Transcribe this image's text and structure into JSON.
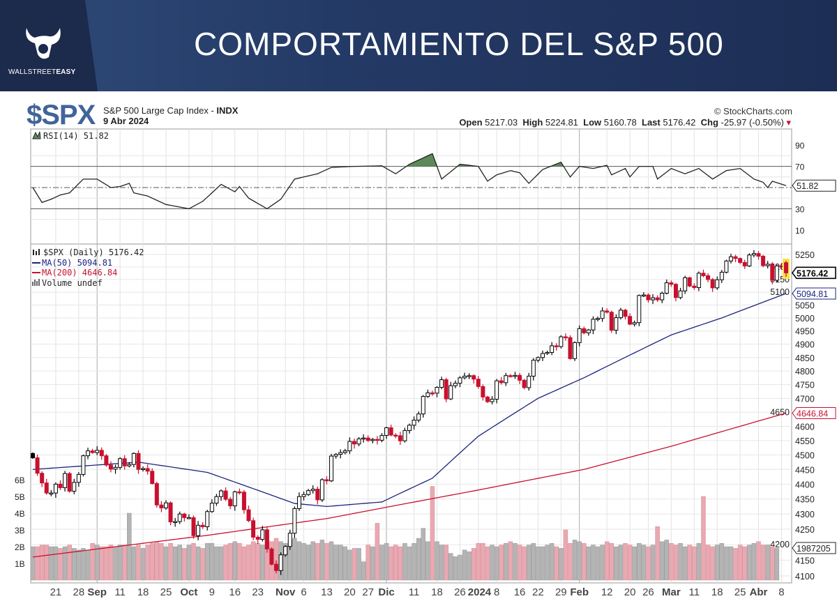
{
  "banner": {
    "title": "COMPORTAMIENTO DEL S&P 500",
    "logo_a": "WALLSTREET",
    "logo_b": "EASY"
  },
  "header": {
    "symbol": "$SPX",
    "name": "S&P 500 Large Cap Index - ",
    "exchange": "INDX",
    "date": "9 Abr 2024",
    "copyright": "© StockCharts.com",
    "open_label": "Open",
    "open": "5217.03",
    "high_label": "High",
    "high": "5224.81",
    "low_label": "Low",
    "low": "5160.78",
    "last_label": "Last",
    "last": "5176.42",
    "chg_label": "Chg",
    "chg": "-25.97 (-0.50%)",
    "chg_arrow": "▾"
  },
  "colors": {
    "up": "#000000",
    "down": "#c8102e",
    "ma50": "#1a237e",
    "ma200": "#c8102e",
    "vol_up": "#b4b4b4",
    "vol_down": "#e8a9b2",
    "rsi_fill": "#5d8a5a"
  },
  "chart_data": {
    "type": "candlestick",
    "legend": {
      "rsi": "RSI(14) 51.82",
      "price": "$SPX (Daily) 5176.42",
      "ma50": "MA(50) 5094.81",
      "ma200": "MA(200) 4646.84",
      "volume": "Volume undef"
    },
    "value_tags": {
      "rsi": "51.82",
      "last": "5176.42",
      "ma50": "5094.81",
      "ma200": "4646.84",
      "volume": "1987205"
    },
    "price_axis": {
      "scale": "log",
      "range": [
        4090,
        5290
      ],
      "ticks": [
        4100,
        4150,
        4200,
        4250,
        4300,
        4350,
        4400,
        4450,
        4500,
        4550,
        4600,
        4650,
        4700,
        4750,
        4800,
        4850,
        4900,
        4950,
        5000,
        5050,
        5100,
        5150,
        5200,
        5250
      ]
    },
    "rsi_axis": {
      "range": [
        0,
        100
      ],
      "ticks": [
        10,
        30,
        70,
        90
      ],
      "levels": [
        30,
        50,
        70
      ]
    },
    "volume_axis": {
      "unit": "B",
      "ticks": [
        "1B",
        "2B",
        "3B",
        "4B",
        "5B",
        "6B"
      ],
      "range": [
        0,
        10.5
      ]
    },
    "x_labels": [
      {
        "t": "21",
        "i": 5
      },
      {
        "t": "28",
        "i": 10
      },
      {
        "t": "Sep",
        "i": 14,
        "b": 1
      },
      {
        "t": "11",
        "i": 19
      },
      {
        "t": "18",
        "i": 24
      },
      {
        "t": "25",
        "i": 29
      },
      {
        "t": "Oct",
        "i": 34,
        "b": 1
      },
      {
        "t": "9",
        "i": 39
      },
      {
        "t": "16",
        "i": 44
      },
      {
        "t": "23",
        "i": 49
      },
      {
        "t": "Nov",
        "i": 55,
        "b": 1
      },
      {
        "t": "6",
        "i": 59
      },
      {
        "t": "13",
        "i": 64
      },
      {
        "t": "20",
        "i": 69
      },
      {
        "t": "27",
        "i": 73
      },
      {
        "t": "Dic",
        "i": 77,
        "b": 1
      },
      {
        "t": "11",
        "i": 83
      },
      {
        "t": "18",
        "i": 88
      },
      {
        "t": "26",
        "i": 93
      },
      {
        "t": "2024",
        "i": 97,
        "b": 1
      },
      {
        "t": "8",
        "i": 101
      },
      {
        "t": "16",
        "i": 106
      },
      {
        "t": "22",
        "i": 110
      },
      {
        "t": "29",
        "i": 115
      },
      {
        "t": "Feb",
        "i": 119,
        "b": 1
      },
      {
        "t": "12",
        "i": 125
      },
      {
        "t": "20",
        "i": 130
      },
      {
        "t": "26",
        "i": 134
      },
      {
        "t": "Mar",
        "i": 139,
        "b": 1
      },
      {
        "t": "11",
        "i": 144
      },
      {
        "t": "18",
        "i": 149
      },
      {
        "t": "25",
        "i": 154
      },
      {
        "t": "Abr",
        "i": 158,
        "b": 1
      },
      {
        "t": "8",
        "i": 163
      }
    ],
    "close": [
      4490,
      4437,
      4404,
      4370,
      4370,
      4400,
      4388,
      4436,
      4376,
      4406,
      4433,
      4497,
      4514,
      4508,
      4516,
      4497,
      4465,
      4451,
      4457,
      4487,
      4462,
      4467,
      4505,
      4450,
      4453,
      4444,
      4402,
      4330,
      4320,
      4337,
      4274,
      4275,
      4300,
      4288,
      4288,
      4229,
      4263,
      4258,
      4308,
      4336,
      4358,
      4377,
      4349,
      4327,
      4374,
      4373,
      4314,
      4278,
      4224,
      4217,
      4248,
      4186,
      4137,
      4117,
      4167,
      4194,
      4237,
      4318,
      4358,
      4365,
      4378,
      4383,
      4347,
      4415,
      4411,
      4496,
      4502,
      4508,
      4514,
      4547,
      4538,
      4556,
      4559,
      4550,
      4554,
      4551,
      4568,
      4595,
      4569,
      4567,
      4549,
      4585,
      4604,
      4622,
      4644,
      4707,
      4720,
      4719,
      4740,
      4768,
      4698,
      4746,
      4755,
      4775,
      4781,
      4783,
      4770,
      4743,
      4705,
      4688,
      4697,
      4764,
      4757,
      4783,
      4780,
      4784,
      4766,
      4739,
      4781,
      4840,
      4850,
      4865,
      4869,
      4894,
      4891,
      4928,
      4925,
      4846,
      4906,
      4959,
      4943,
      4954,
      4995,
      4998,
      5027,
      5022,
      4953,
      5001,
      5030,
      5006,
      4976,
      4982,
      5087,
      5089,
      5070,
      5078,
      5070,
      5096,
      5137,
      5131,
      5079,
      5105,
      5157,
      5124,
      5118,
      5175,
      5165,
      5150,
      5117,
      5149,
      5179,
      5224,
      5241,
      5234,
      5218,
      5204,
      5248,
      5254,
      5243,
      5205,
      5211,
      5147,
      5204,
      5202,
      5176.42
    ],
    "volume_b": [
      2.0,
      2.0,
      2.1,
      2.1,
      2.0,
      2.0,
      1.9,
      2.0,
      2.1,
      1.9,
      1.8,
      1.9,
      1.8,
      2.2,
      2.1,
      2.0,
      2.0,
      2.1,
      2.0,
      2.1,
      2.1,
      4.0,
      2.0,
      2.1,
      1.9,
      2.1,
      2.2,
      2.3,
      2.2,
      2.0,
      2.2,
      2.0,
      2.1,
      1.9,
      2.1,
      2.2,
      2.0,
      1.9,
      2.2,
      2.2,
      2.0,
      2.0,
      2.1,
      2.2,
      2.3,
      2.2,
      2.0,
      2.1,
      2.3,
      2.2,
      2.1,
      2.4,
      2.3,
      2.5,
      2.3,
      2.2,
      2.4,
      2.5,
      2.3,
      2.2,
      2.1,
      2.3,
      2.2,
      2.4,
      2.2,
      2.3,
      2.1,
      2.1,
      2.0,
      1.8,
      1.9,
      1.9,
      1.1,
      2.1,
      2.0,
      3.4,
      2.1,
      2.2,
      2.0,
      2.1,
      2.0,
      2.2,
      2.0,
      2.2,
      2.5,
      3.1,
      2.3,
      5.6,
      2.3,
      2.1,
      2.1,
      1.6,
      1.4,
      1.5,
      1.8,
      1.7,
      1.9,
      2.2,
      2.2,
      2.0,
      2.1,
      2.0,
      2.1,
      2.2,
      2.3,
      2.2,
      2.1,
      2.0,
      2.1,
      2.2,
      2.0,
      2.0,
      2.1,
      2.2,
      2.0,
      1.9,
      3.0,
      2.2,
      2.4,
      2.3,
      2.2,
      2.0,
      2.1,
      2.0,
      2.1,
      2.3,
      2.2,
      2.0,
      2.1,
      2.2,
      2.1,
      2.0,
      2.2,
      2.1,
      2.0,
      2.1,
      3.2,
      2.3,
      2.4,
      2.2,
      2.1,
      2.2,
      2.0,
      2.1,
      2.0,
      2.2,
      5.0,
      2.1,
      2.0,
      2.1,
      2.2,
      2.0,
      2.0,
      1.9,
      2.1,
      2.0,
      2.1,
      2.2,
      2.3,
      2.1,
      2.1,
      2.0,
      1.9
    ],
    "ma50": [
      [
        0,
        4450
      ],
      [
        23,
        4475
      ],
      [
        38,
        4440
      ],
      [
        57,
        4335
      ],
      [
        64,
        4325
      ],
      [
        76,
        4340
      ],
      [
        87,
        4420
      ],
      [
        97,
        4565
      ],
      [
        110,
        4700
      ],
      [
        120,
        4775
      ],
      [
        139,
        4935
      ],
      [
        150,
        5000
      ],
      [
        164,
        5095
      ]
    ],
    "ma200": [
      [
        0,
        4160
      ],
      [
        38,
        4230
      ],
      [
        64,
        4285
      ],
      [
        97,
        4380
      ],
      [
        120,
        4450
      ],
      [
        139,
        4530
      ],
      [
        164,
        4647
      ]
    ],
    "rsi": [
      [
        0,
        50
      ],
      [
        2,
        36
      ],
      [
        4,
        39
      ],
      [
        6,
        43
      ],
      [
        8,
        45
      ],
      [
        11,
        58
      ],
      [
        14,
        58
      ],
      [
        17,
        50
      ],
      [
        19,
        51
      ],
      [
        21,
        54
      ],
      [
        22,
        45
      ],
      [
        25,
        42
      ],
      [
        29,
        34
      ],
      [
        34,
        30
      ],
      [
        37,
        37
      ],
      [
        39,
        45
      ],
      [
        41,
        53
      ],
      [
        44,
        46
      ],
      [
        45,
        51
      ],
      [
        47,
        40
      ],
      [
        51,
        30
      ],
      [
        54,
        39
      ],
      [
        57,
        58
      ],
      [
        60,
        61
      ],
      [
        62,
        63
      ],
      [
        63,
        65
      ],
      [
        65,
        69
      ],
      [
        70,
        70
      ],
      [
        76,
        70.5
      ],
      [
        79,
        63
      ],
      [
        82,
        72
      ],
      [
        87,
        82
      ],
      [
        89,
        58
      ],
      [
        93,
        72
      ],
      [
        97,
        70
      ],
      [
        99,
        56
      ],
      [
        101,
        62
      ],
      [
        104,
        66
      ],
      [
        106,
        64
      ],
      [
        108,
        54
      ],
      [
        111,
        67
      ],
      [
        115,
        74
      ],
      [
        117,
        60
      ],
      [
        119,
        70
      ],
      [
        122,
        68
      ],
      [
        125,
        71
      ],
      [
        126,
        62
      ],
      [
        129,
        68
      ],
      [
        130,
        60
      ],
      [
        132,
        70
      ],
      [
        135,
        70
      ],
      [
        136,
        58
      ],
      [
        139,
        68
      ],
      [
        142,
        63
      ],
      [
        145,
        68
      ],
      [
        148,
        58
      ],
      [
        151,
        66
      ],
      [
        154,
        68
      ],
      [
        157,
        58
      ],
      [
        159,
        55
      ],
      [
        160,
        50
      ],
      [
        161,
        56
      ],
      [
        164,
        51.82
      ]
    ]
  }
}
